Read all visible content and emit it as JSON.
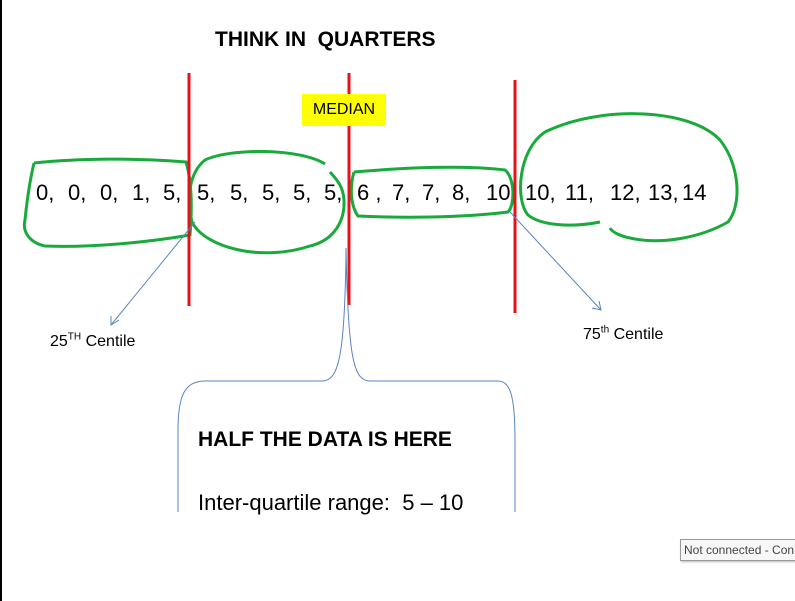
{
  "title": "THINK IN  QUARTERS",
  "median_label": "MEDIAN",
  "data_values": [
    "0,",
    "0,",
    "0,",
    "1,",
    "5,",
    "5,",
    "5,",
    "5,",
    "5,",
    "5,",
    "6 ,",
    "7,",
    "7,",
    "8,",
    "10",
    "10,",
    "11,",
    "12,",
    "13,",
    "14"
  ],
  "centile_25": {
    "number": "25",
    "suffix": "TH",
    "label": " Centile"
  },
  "centile_75": {
    "number": "75",
    "suffix": "th",
    "label": " Centile"
  },
  "half_data_label": "HALF THE DATA IS HERE",
  "iqr_label": "Inter-quartile range:  5 – 10",
  "status_text": "Not connected - Con",
  "colors": {
    "divider": "#e8101a",
    "circle": "#1aaa3c",
    "highlight": "#ffff00",
    "annotation": "#5a84c0"
  }
}
